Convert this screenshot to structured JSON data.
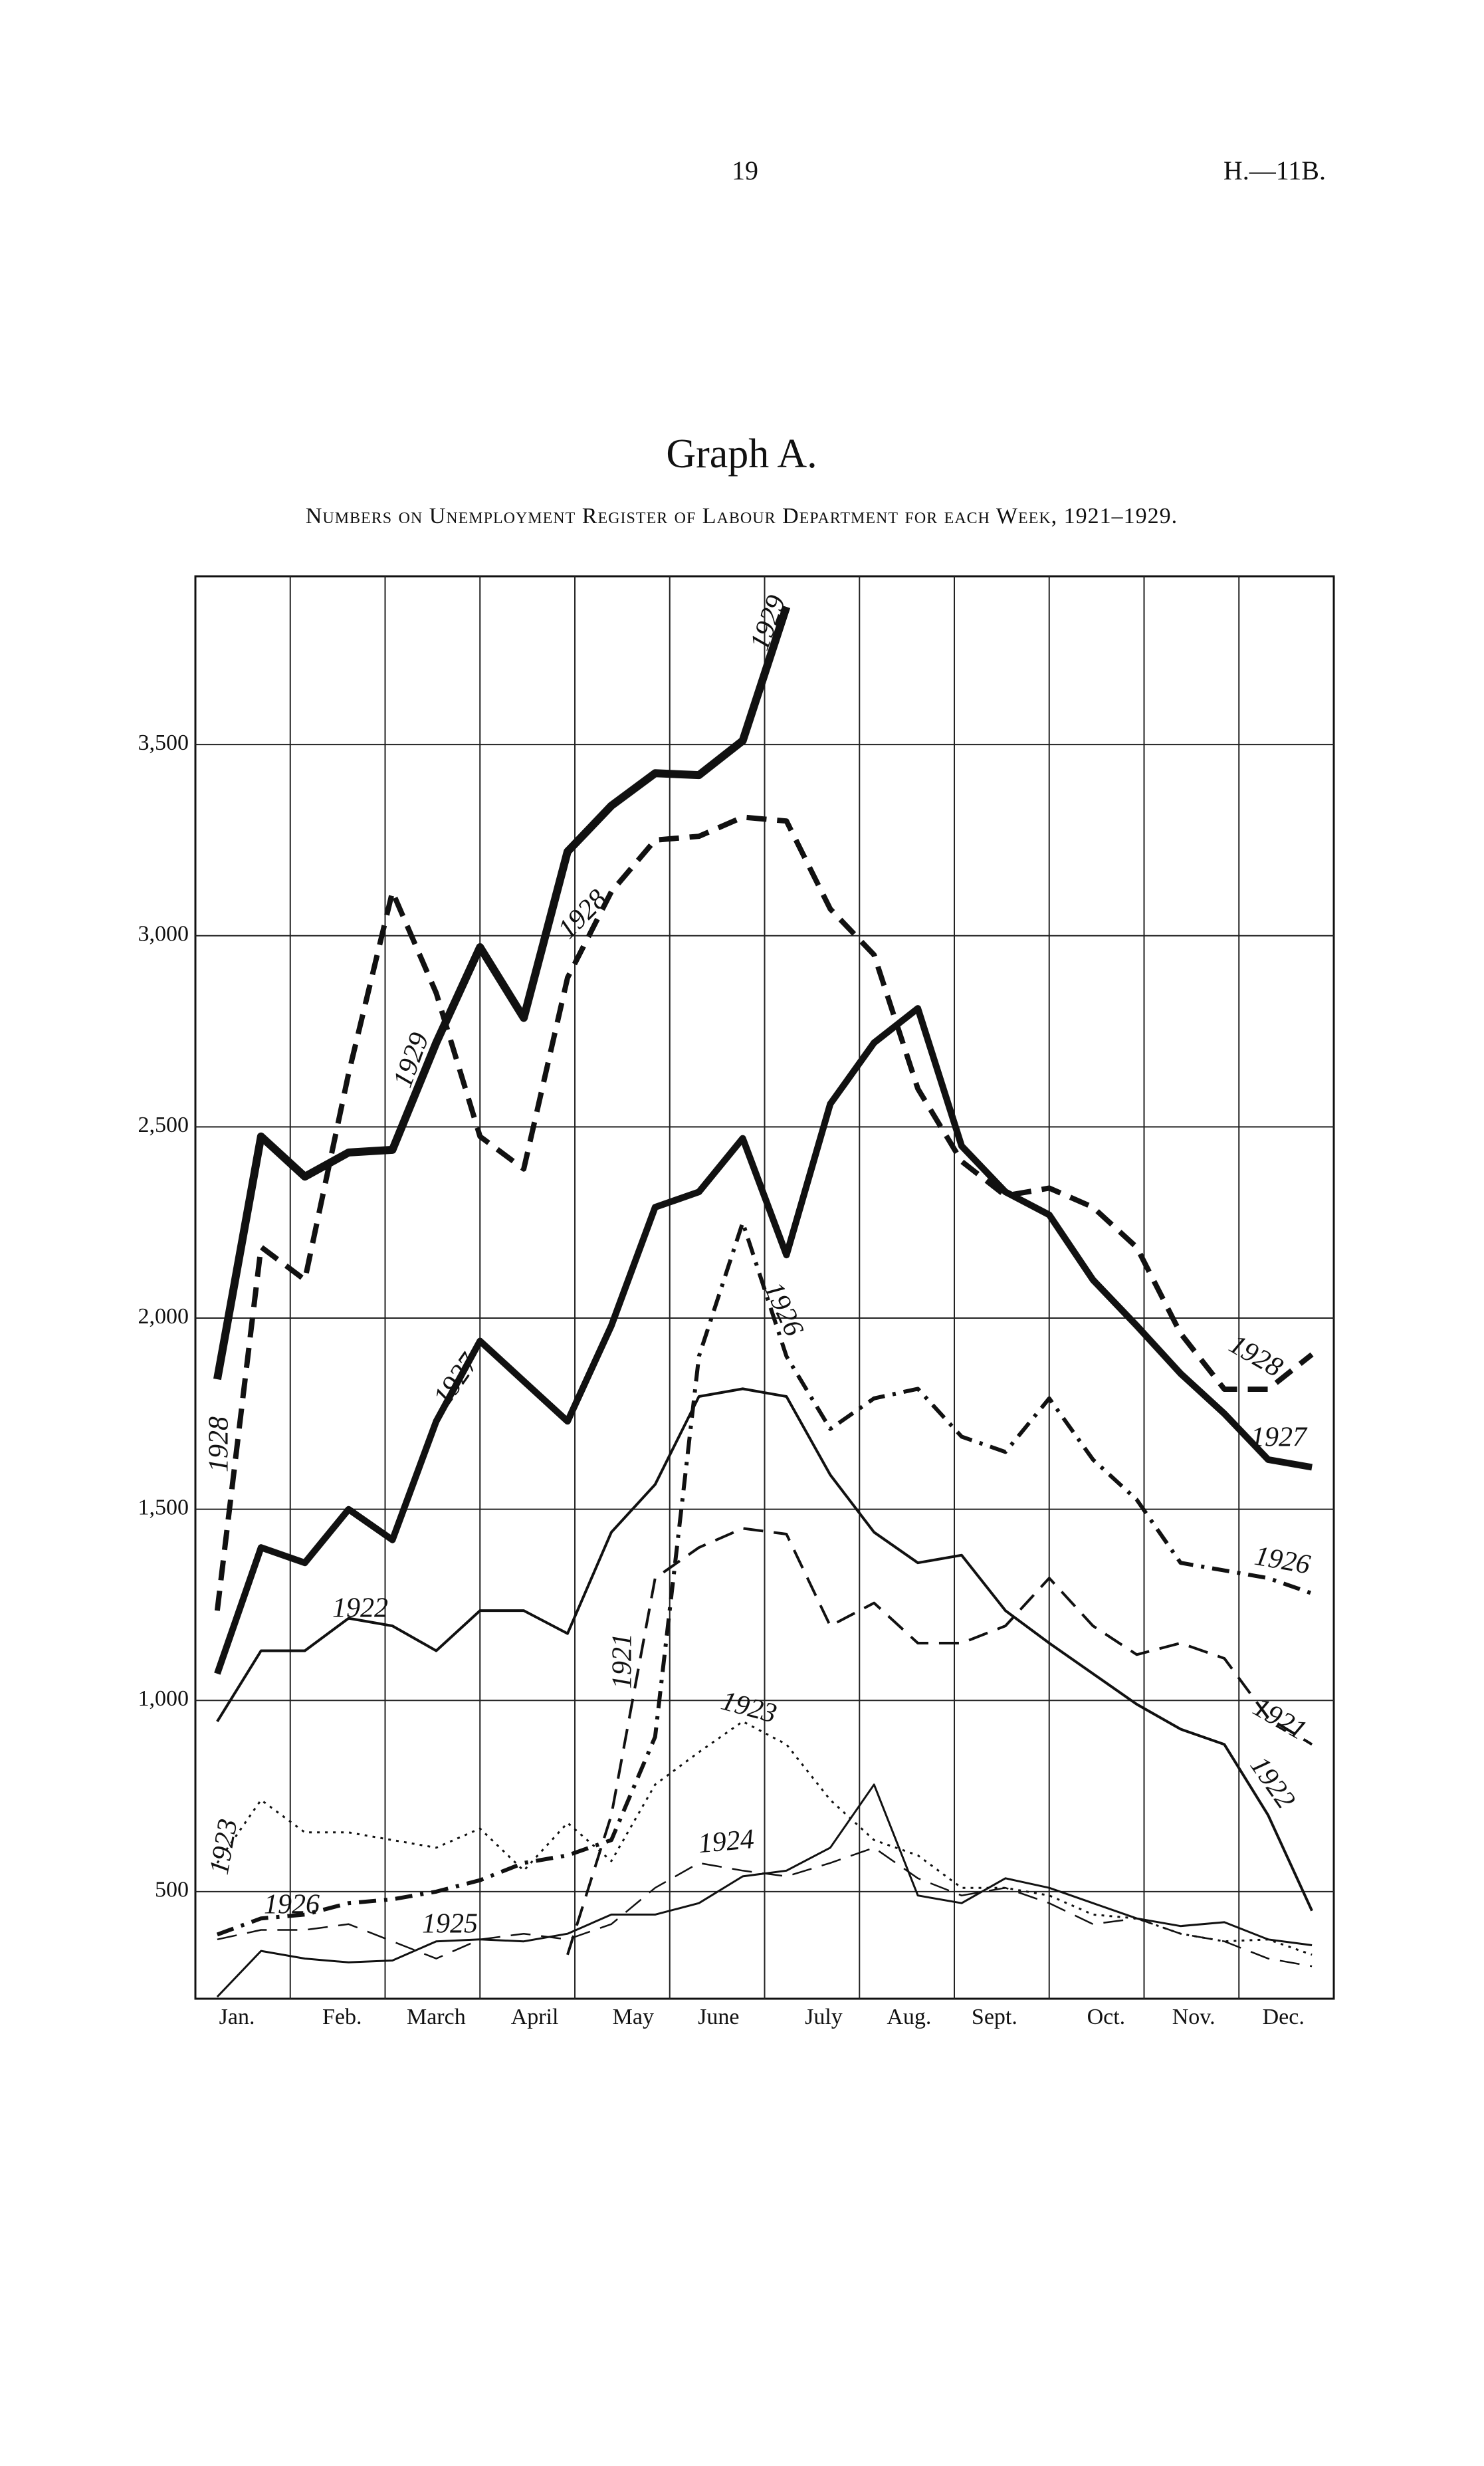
{
  "page_number": "19",
  "reference": "H.—11B.",
  "chart_data": {
    "type": "line",
    "title": "Graph A.",
    "subtitle": "Numbers on Unemployment Register of Labour Department for each Week, 1921–1929.",
    "x": [
      1,
      3,
      5,
      7,
      9,
      11,
      13,
      15,
      17,
      19,
      21,
      23,
      25,
      27,
      29,
      31,
      33,
      35,
      37,
      39,
      41,
      43,
      45,
      47,
      49,
      51
    ],
    "xlim": [
      0,
      52
    ],
    "xticks": [
      {
        "value": 1.9,
        "label": "Jan."
      },
      {
        "value": 6.7,
        "label": "Feb."
      },
      {
        "value": 11,
        "label": "March"
      },
      {
        "value": 15.5,
        "label": "April"
      },
      {
        "value": 20,
        "label": "May"
      },
      {
        "value": 23.9,
        "label": "June"
      },
      {
        "value": 28.7,
        "label": "July"
      },
      {
        "value": 32.6,
        "label": "Aug."
      },
      {
        "value": 36.5,
        "label": "Sept."
      },
      {
        "value": 41.6,
        "label": "Oct."
      },
      {
        "value": 45.6,
        "label": "Nov."
      },
      {
        "value": 49.7,
        "label": "Dec."
      }
    ],
    "ylim": [
      220,
      3940
    ],
    "yticks": [
      500,
      {
        "value": 1000,
        "label": "1,000"
      },
      {
        "value": 1500,
        "label": "1,500"
      },
      {
        "value": 2000,
        "label": "2,000"
      },
      {
        "value": 2500,
        "label": "2,500"
      },
      {
        "value": 3000,
        "label": "3,000"
      },
      {
        "value": 3500,
        "label": "3,500"
      }
    ],
    "grid": true,
    "series": [
      {
        "name": "1929",
        "color": "#111",
        "linestyle": "solid",
        "linewidth": 12,
        "values": [
          1840,
          2475,
          2370,
          2433,
          2440,
          2720,
          2970,
          2785,
          3220,
          3340,
          3425,
          3420,
          3510,
          3860,
          null,
          null,
          null,
          null,
          null,
          null,
          null,
          null,
          null,
          null,
          null,
          null
        ]
      },
      {
        "name": "1928",
        "color": "#111",
        "linestyle": "dashed",
        "linewidth": 8,
        "values": [
          1235,
          2186,
          2100,
          2640,
          3115,
          2850,
          2475,
          2390,
          2890,
          3115,
          3250,
          3260,
          3310,
          3300,
          3070,
          2950,
          2600,
          2410,
          2320,
          2340,
          2290,
          2185,
          1960,
          1814,
          1814,
          1905
        ]
      },
      {
        "name": "1927",
        "color": "#111",
        "linestyle": "solid",
        "linewidth": 10,
        "values": [
          1070,
          1400,
          1360,
          1500,
          1420,
          1730,
          1940,
          1835,
          1730,
          1980,
          2290,
          2330,
          2470,
          2165,
          2560,
          2720,
          2810,
          2450,
          2330,
          2270,
          2100,
          1980,
          1855,
          1750,
          1630,
          1610
        ]
      },
      {
        "name": "1926",
        "color": "#111",
        "linestyle": "dashdot",
        "linewidth": 6,
        "values": [
          388,
          430,
          440,
          470,
          480,
          500,
          530,
          575,
          595,
          635,
          905,
          1900,
          2250,
          1900,
          1710,
          1790,
          1815,
          1690,
          1650,
          1790,
          1630,
          1525,
          1360,
          1340,
          1320,
          1280
        ]
      },
      {
        "name": "1922",
        "color": "#111",
        "linestyle": "solid",
        "linewidth": 4,
        "values": [
          945,
          1130,
          1130,
          1215,
          1195,
          1130,
          1235,
          1235,
          1175,
          1440,
          1565,
          1795,
          1815,
          1795,
          1590,
          1440,
          1360,
          1380,
          1235,
          1150,
          1070,
          990,
          925,
          885,
          700,
          450
        ]
      },
      {
        "name": "1921",
        "color": "#111",
        "linestyle": "dashed",
        "linewidth": 4,
        "values": [
          null,
          null,
          null,
          null,
          null,
          null,
          null,
          null,
          335,
          700,
          1320,
          1400,
          1450,
          1435,
          1195,
          1255,
          1150,
          1150,
          1195,
          1320,
          1195,
          1120,
          1150,
          1110,
          955,
          885
        ]
      },
      {
        "name": "1923",
        "color": "#111",
        "linestyle": "dotted",
        "linewidth": 3,
        "values": [
          575,
          740,
          655,
          655,
          635,
          615,
          665,
          555,
          680,
          580,
          780,
          865,
          945,
          885,
          740,
          635,
          595,
          510,
          510,
          490,
          440,
          430,
          390,
          370,
          375,
          335
        ]
      },
      {
        "name": "1924",
        "color": "#111",
        "linestyle": "solid",
        "linewidth": 3,
        "values": [
          225,
          345,
          325,
          315,
          320,
          370,
          375,
          370,
          390,
          440,
          440,
          470,
          540,
          555,
          615,
          780,
          490,
          470,
          535,
          510,
          470,
          430,
          410,
          420,
          375,
          360
        ]
      },
      {
        "name": "1925",
        "color": "#111",
        "linestyle": "dashed",
        "linewidth": 2.5,
        "values": [
          375,
          400,
          400,
          415,
          370,
          325,
          375,
          390,
          375,
          415,
          510,
          575,
          555,
          540,
          575,
          615,
          535,
          490,
          510,
          470,
          415,
          430,
          390,
          370,
          325,
          305
        ]
      }
    ]
  }
}
